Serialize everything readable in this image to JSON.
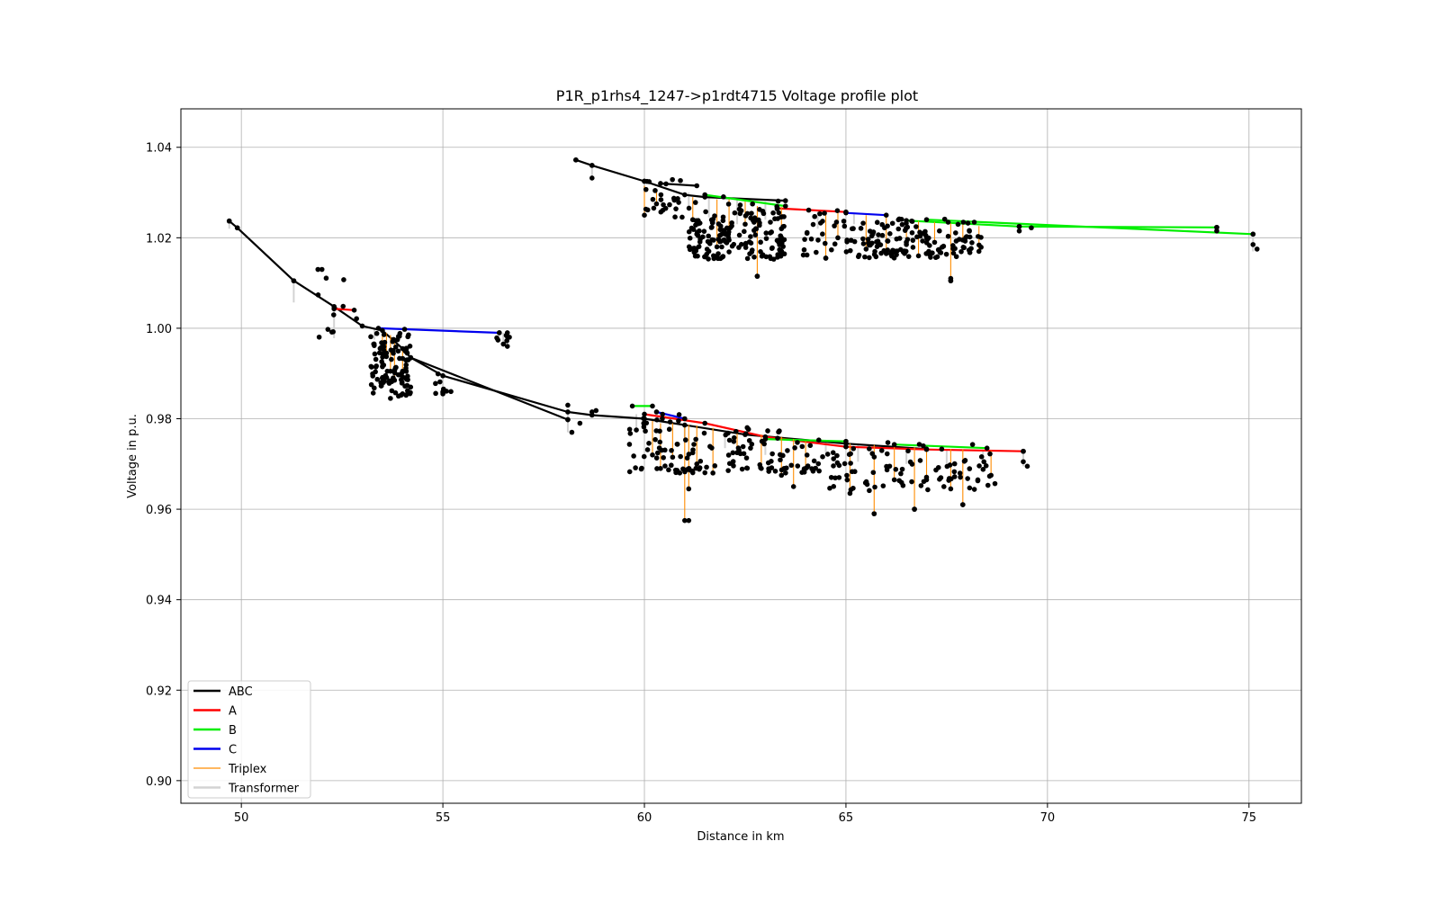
{
  "chart_data": {
    "type": "line",
    "title": "P1R_p1rhs4_1247->p1rdt4715 Voltage profile plot",
    "xlabel": "Distance in km",
    "ylabel": "Voltage in p.u.",
    "xlim": [
      48.5,
      76.3
    ],
    "ylim": [
      0.895,
      1.0485
    ],
    "xticks": [
      50,
      55,
      60,
      65,
      70,
      75
    ],
    "xtick_labels": [
      "50",
      "55",
      "60",
      "65",
      "70",
      "75"
    ],
    "yticks": [
      0.9,
      0.92,
      0.94,
      0.96,
      0.98,
      1.0,
      1.02,
      1.04
    ],
    "ytick_labels": [
      "0.90",
      "0.92",
      "0.94",
      "0.96",
      "0.98",
      "1.00",
      "1.02",
      "1.04"
    ],
    "grid": true,
    "legend_position": "lower-left",
    "colors": {
      "ABC": "#000000",
      "A": "#ff0000",
      "B": "#00ee00",
      "C": "#0000ee",
      "Triplex": "#ff8c00",
      "Transformer": "#d3d3d3",
      "node": "#000000"
    },
    "legend": [
      {
        "name": "ABC",
        "style": "ABC"
      },
      {
        "name": "A",
        "style": "A"
      },
      {
        "name": "B",
        "style": "B"
      },
      {
        "name": "C",
        "style": "C"
      },
      {
        "name": "Triplex",
        "style": "Triplex"
      },
      {
        "name": "Transformer",
        "style": "Transformer"
      }
    ],
    "series": [
      {
        "phase": "ABC",
        "points": [
          [
            49.7,
            1.0237
          ],
          [
            49.9,
            1.0222
          ],
          [
            51.3,
            1.0105
          ],
          [
            52.3,
            1.0048
          ],
          [
            53.0,
            1.0005
          ],
          [
            53.5,
            0.9995
          ],
          [
            54.0,
            0.9955
          ],
          [
            54.2,
            0.9935
          ],
          [
            55.0,
            0.9895
          ],
          [
            58.1,
            0.9815
          ],
          [
            58.7,
            0.9808
          ],
          [
            60.0,
            0.98
          ],
          [
            61.0,
            0.9786
          ],
          [
            62.5,
            0.9765
          ],
          [
            65.0,
            0.9745
          ],
          [
            67.0,
            0.9733
          ]
        ]
      },
      {
        "phase": "ABC",
        "points": [
          [
            54.2,
            0.9935
          ],
          [
            58.1,
            0.9798
          ]
        ]
      },
      {
        "phase": "ABC",
        "points": [
          [
            58.3,
            1.0372
          ],
          [
            58.7,
            1.036
          ],
          [
            60.0,
            1.0325
          ],
          [
            61.0,
            1.0295
          ],
          [
            61.5,
            1.029
          ],
          [
            63.5,
            1.0282
          ]
        ]
      },
      {
        "phase": "ABC",
        "points": [
          [
            60.4,
            1.032
          ],
          [
            61.3,
            1.0315
          ]
        ]
      },
      {
        "phase": "A",
        "points": [
          [
            52.3,
            1.0043
          ],
          [
            52.8,
            1.004
          ]
        ]
      },
      {
        "phase": "A",
        "points": [
          [
            60.0,
            0.981
          ],
          [
            61.5,
            0.979
          ],
          [
            63.0,
            0.976
          ],
          [
            65.0,
            0.9738
          ],
          [
            67.0,
            0.9732
          ],
          [
            69.4,
            0.9728
          ]
        ]
      },
      {
        "phase": "A",
        "points": [
          [
            63.3,
            1.0265
          ],
          [
            65.0,
            1.0257
          ]
        ]
      },
      {
        "phase": "B",
        "points": [
          [
            59.7,
            0.9828
          ],
          [
            60.2,
            0.9828
          ]
        ]
      },
      {
        "phase": "B",
        "points": [
          [
            63.0,
            0.9755
          ],
          [
            65.0,
            0.975
          ]
        ]
      },
      {
        "phase": "B",
        "points": [
          [
            66.2,
            0.9743
          ],
          [
            68.5,
            0.9735
          ]
        ]
      },
      {
        "phase": "B",
        "points": [
          [
            61.5,
            1.0295
          ],
          [
            63.5,
            1.027
          ]
        ]
      },
      {
        "phase": "B",
        "points": [
          [
            66.5,
            1.0238
          ],
          [
            69.3,
            1.0225
          ],
          [
            74.2,
            1.0223
          ]
        ]
      },
      {
        "phase": "B",
        "points": [
          [
            67.0,
            1.024
          ],
          [
            75.1,
            1.0208
          ]
        ]
      },
      {
        "phase": "C",
        "points": [
          [
            53.4,
            1.0
          ],
          [
            56.4,
            0.999
          ]
        ]
      },
      {
        "phase": "C",
        "points": [
          [
            60.3,
            0.9815
          ],
          [
            61.0,
            0.98
          ]
        ]
      },
      {
        "phase": "C",
        "points": [
          [
            65.0,
            1.0255
          ],
          [
            66.0,
            1.025
          ]
        ]
      }
    ],
    "triplex_drops": [
      [
        53.6,
        0.999,
        0.9945
      ],
      [
        53.7,
        0.9985,
        0.9905
      ],
      [
        53.8,
        0.998,
        0.9885
      ],
      [
        54.0,
        0.996,
        0.9905
      ],
      [
        53.5,
        0.9985,
        0.9915
      ],
      [
        60.0,
        1.0315,
        1.025
      ],
      [
        60.3,
        1.0305,
        1.0275
      ],
      [
        61.2,
        1.029,
        1.024
      ],
      [
        61.8,
        1.0285,
        1.018
      ],
      [
        62.1,
        1.0285,
        1.0195
      ],
      [
        62.5,
        1.028,
        1.023
      ],
      [
        62.8,
        1.027,
        1.0115
      ],
      [
        63.4,
        1.0268,
        1.022
      ],
      [
        64.5,
        1.0258,
        1.0155
      ],
      [
        64.8,
        1.0255,
        1.02
      ],
      [
        65.5,
        1.025,
        1.0175
      ],
      [
        66.0,
        1.0245,
        1.0165
      ],
      [
        66.5,
        1.024,
        1.0185
      ],
      [
        66.8,
        1.0237,
        1.016
      ],
      [
        67.2,
        1.0235,
        1.019
      ],
      [
        67.6,
        1.0232,
        1.0105
      ],
      [
        67.9,
        1.023,
        1.0195
      ],
      [
        68.3,
        1.0226,
        1.017
      ],
      [
        60.2,
        0.9795,
        0.972
      ],
      [
        60.4,
        0.979,
        0.969
      ],
      [
        60.7,
        0.979,
        0.9715
      ],
      [
        61.0,
        0.9788,
        0.9575
      ],
      [
        61.1,
        0.9787,
        0.9645
      ],
      [
        61.3,
        0.9785,
        0.97
      ],
      [
        61.7,
        0.978,
        0.968
      ],
      [
        62.3,
        0.977,
        0.9725
      ],
      [
        62.9,
        0.9765,
        0.969
      ],
      [
        63.4,
        0.976,
        0.9675
      ],
      [
        63.7,
        0.9755,
        0.965
      ],
      [
        64.0,
        0.975,
        0.969
      ],
      [
        65.1,
        0.9745,
        0.9635
      ],
      [
        65.7,
        0.9742,
        0.959
      ],
      [
        66.2,
        0.974,
        0.9665
      ],
      [
        66.7,
        0.9737,
        0.96
      ],
      [
        67.0,
        0.9735,
        0.9665
      ],
      [
        67.6,
        0.9733,
        0.9645
      ],
      [
        67.9,
        0.9732,
        0.961
      ],
      [
        68.6,
        0.973,
        0.9675
      ]
    ],
    "transformer_drops": [
      [
        49.7,
        1.0237,
        1.022
      ],
      [
        51.3,
        1.0105,
        1.0057
      ],
      [
        52.3,
        1.0048,
        0.9978
      ],
      [
        53.3,
        0.9998,
        0.9975
      ],
      [
        55.0,
        0.9895,
        0.9855
      ],
      [
        56.5,
        0.999,
        0.9965
      ],
      [
        58.1,
        0.9815,
        0.977
      ],
      [
        58.7,
        1.036,
        1.033
      ],
      [
        60.0,
        1.0328,
        1.03
      ],
      [
        61.1,
        1.03,
        1.026
      ],
      [
        61.6,
        1.0292,
        1.0245
      ],
      [
        62.3,
        1.0286,
        1.023
      ],
      [
        63.0,
        1.028,
        1.024
      ],
      [
        64.3,
        1.0262,
        1.022
      ],
      [
        65.2,
        1.0252,
        1.023
      ],
      [
        69.3,
        1.0225,
        1.021
      ],
      [
        74.2,
        1.0223,
        1.021
      ],
      [
        75.1,
        1.0208,
        1.017
      ],
      [
        59.8,
        0.981,
        0.977
      ],
      [
        61.0,
        0.979,
        0.9745
      ],
      [
        62.0,
        0.9772,
        0.9735
      ],
      [
        63.0,
        0.9762,
        0.972
      ],
      [
        64.5,
        0.9748,
        0.9725
      ],
      [
        65.3,
        0.9745,
        0.9705
      ],
      [
        66.5,
        0.9738,
        0.97
      ],
      [
        67.5,
        0.9733,
        0.969
      ],
      [
        68.4,
        0.9731,
        0.97
      ],
      [
        69.4,
        0.9728,
        0.9695
      ]
    ],
    "node_clusters": [
      {
        "x": [
          53.2,
          54.2
        ],
        "y": [
          0.985,
          1.0
        ],
        "count": 110
      },
      {
        "x": [
          54.8,
          55.2
        ],
        "y": [
          0.9855,
          0.99
        ],
        "count": 8
      },
      {
        "x": [
          56.3,
          56.7
        ],
        "y": [
          0.996,
          0.999
        ],
        "count": 6
      },
      {
        "x": [
          51.9,
          52.9
        ],
        "y": [
          0.9975,
          1.013
        ],
        "count": 10
      },
      {
        "x": [
          60.0,
          61.0
        ],
        "y": [
          1.0245,
          1.0335
        ],
        "count": 25
      },
      {
        "x": [
          61.1,
          63.5
        ],
        "y": [
          1.015,
          1.0295
        ],
        "count": 170
      },
      {
        "x": [
          63.8,
          65.0
        ],
        "y": [
          1.015,
          1.0265
        ],
        "count": 25
      },
      {
        "x": [
          65.0,
          68.4
        ],
        "y": [
          1.0155,
          1.0245
        ],
        "count": 140
      },
      {
        "x": [
          59.6,
          61.3
        ],
        "y": [
          0.968,
          0.981
        ],
        "count": 60
      },
      {
        "x": [
          61.3,
          64.5
        ],
        "y": [
          0.968,
          0.9785
        ],
        "count": 80
      },
      {
        "x": [
          64.5,
          68.7
        ],
        "y": [
          0.964,
          0.975
        ],
        "count": 90
      }
    ],
    "node_points": [
      [
        49.7,
        1.0237
      ],
      [
        49.9,
        1.0222
      ],
      [
        51.3,
        1.0105
      ],
      [
        51.9,
        1.013
      ],
      [
        52.0,
        1.013
      ],
      [
        58.3,
        1.0372
      ],
      [
        58.7,
        1.036
      ],
      [
        58.7,
        1.0332
      ],
      [
        60.0,
        1.0325
      ],
      [
        69.3,
        1.0225
      ],
      [
        69.3,
        1.0215
      ],
      [
        69.6,
        1.0222
      ],
      [
        74.2,
        1.0223
      ],
      [
        74.2,
        1.0215
      ],
      [
        75.1,
        1.0208
      ],
      [
        75.1,
        1.0185
      ],
      [
        75.2,
        1.0175
      ],
      [
        62.8,
        1.0115
      ],
      [
        67.6,
        1.0105
      ],
      [
        67.6,
        1.011
      ],
      [
        64.5,
        1.0155
      ],
      [
        58.1,
        0.983
      ],
      [
        58.1,
        0.9798
      ],
      [
        58.2,
        0.977
      ],
      [
        58.4,
        0.979
      ],
      [
        58.7,
        0.9815
      ],
      [
        58.8,
        0.9818
      ],
      [
        59.8,
        0.9775
      ],
      [
        61.1,
        0.9575
      ],
      [
        65.7,
        0.959
      ],
      [
        66.7,
        0.96
      ],
      [
        67.9,
        0.961
      ],
      [
        69.4,
        0.9728
      ],
      [
        69.4,
        0.9705
      ],
      [
        69.5,
        0.9695
      ],
      [
        56.4,
        0.999
      ],
      [
        56.6,
        0.999
      ],
      [
        56.5,
        0.9965
      ],
      [
        56.6,
        0.996
      ],
      [
        55.0,
        0.9855
      ],
      [
        55.2,
        0.986
      ],
      [
        54.2,
        0.987
      ],
      [
        54.0,
        0.9855
      ],
      [
        53.7,
        0.9845
      ],
      [
        53.9,
        0.985
      ]
    ]
  }
}
